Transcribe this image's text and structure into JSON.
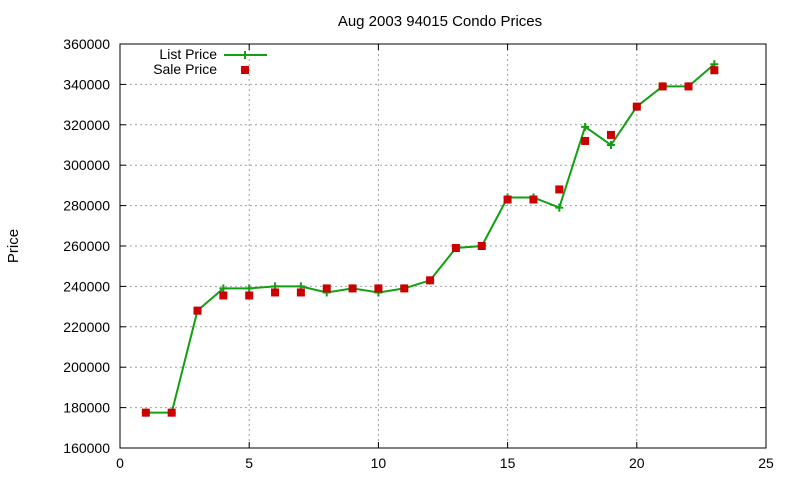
{
  "chart_data": {
    "type": "line",
    "title": "Aug 2003 94015 Condo Prices",
    "xlabel": "",
    "ylabel": "Price",
    "xlim": [
      0,
      25
    ],
    "ylim": [
      160000,
      360000
    ],
    "xticks": [
      0,
      5,
      10,
      15,
      20,
      25
    ],
    "yticks": [
      160000,
      180000,
      200000,
      220000,
      240000,
      260000,
      280000,
      300000,
      320000,
      340000,
      360000
    ],
    "grid": true,
    "legend_position": "top-left",
    "series": [
      {
        "name": "List Price",
        "style": "line+cross",
        "color": "#11a011",
        "x": [
          1,
          2,
          3,
          4,
          5,
          6,
          7,
          8,
          9,
          10,
          11,
          12,
          13,
          14,
          15,
          16,
          17,
          18,
          19,
          20,
          21,
          22,
          23
        ],
        "y": [
          177500,
          177500,
          228000,
          239000,
          239000,
          240000,
          240000,
          237000,
          239000,
          237000,
          239000,
          243000,
          259000,
          260000,
          284000,
          284000,
          279000,
          319000,
          310000,
          329000,
          339000,
          339000,
          350000
        ]
      },
      {
        "name": "Sale Price",
        "style": "square",
        "color": "#cc0000",
        "x": [
          1,
          2,
          3,
          4,
          5,
          6,
          7,
          8,
          9,
          10,
          11,
          12,
          13,
          14,
          15,
          16,
          17,
          18,
          19,
          20,
          21,
          22,
          23
        ],
        "y": [
          177500,
          177500,
          228000,
          235500,
          235500,
          237000,
          237000,
          239000,
          239000,
          239000,
          239000,
          243000,
          259000,
          260000,
          283000,
          283000,
          288000,
          312000,
          315000,
          329000,
          339000,
          339000,
          347000
        ]
      }
    ]
  }
}
